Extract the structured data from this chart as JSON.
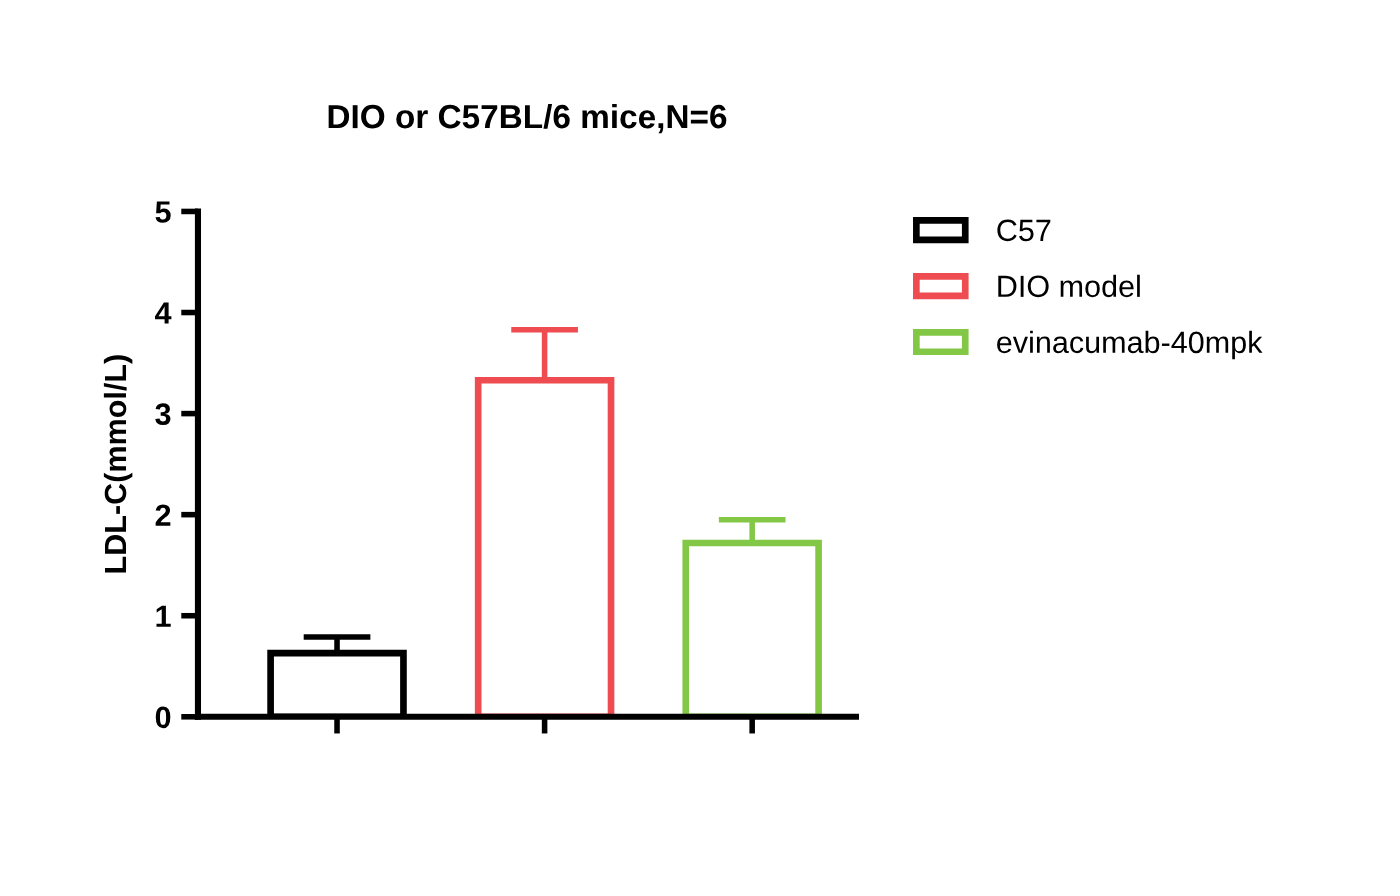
{
  "chart_data": {
    "type": "bar",
    "title": "DIO or C57BL/6 mice,N=6",
    "ylabel": "LDL-C(mmol/L)",
    "categories": [
      null,
      null,
      null
    ],
    "series": [
      {
        "name": "C57",
        "color": "#000000",
        "values": [
          0.63,
          null,
          null
        ],
        "errors": [
          [
            0.63,
            0.79
          ],
          null,
          null
        ]
      },
      {
        "name": "DIO model",
        "color": "#ee4c50",
        "values": [
          null,
          3.33,
          null
        ],
        "errors": [
          null,
          [
            3.33,
            3.83
          ],
          null
        ]
      },
      {
        "name": "evinacumab-40mpk",
        "color": "#82c846",
        "values": [
          null,
          null,
          1.72
        ],
        "errors": [
          null,
          null,
          [
            1.72,
            1.95
          ]
        ]
      }
    ],
    "ylim": [
      0,
      5
    ],
    "yticks": [
      0,
      1,
      2,
      3,
      4,
      5
    ],
    "grid": false,
    "legend": "top right"
  }
}
